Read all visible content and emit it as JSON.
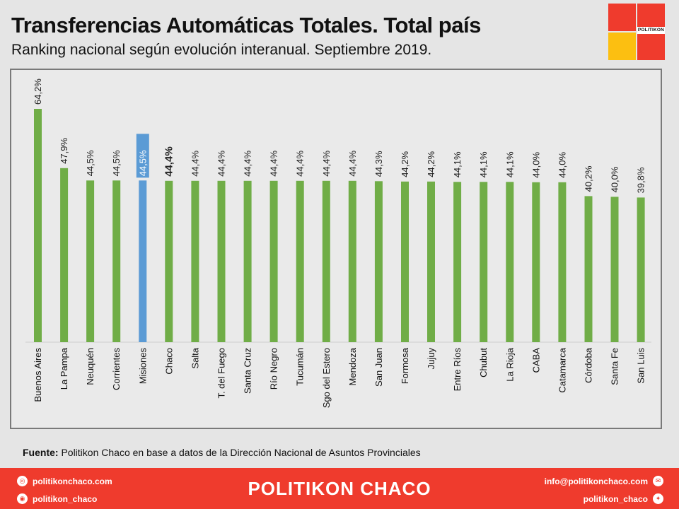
{
  "header": {
    "title": "Transferencias Automáticas Totales. Total país",
    "subtitle": "Ranking nacional según evolución interanual. Septiembre 2019.",
    "logo_text": "POLITIKON"
  },
  "colors": {
    "bar": "#70ad47",
    "highlight": "#5b9bd5",
    "accent": "#ef3b2d",
    "yellow": "#fcbf11"
  },
  "chart_data": {
    "type": "bar",
    "orientation": "vertical",
    "categories": [
      "Buenos Aires",
      "La Pampa",
      "Neuquén",
      "Corrientes",
      "Misiones",
      "Chaco",
      "Salta",
      "T. del Fuego",
      "Santa Cruz",
      "Río Negro",
      "Tucumán",
      "Sgo del Estero",
      "Mendoza",
      "San Juan",
      "Formosa",
      "Jujuy",
      "Entre Ríos",
      "Chubut",
      "La Rioja",
      "CABA",
      "Catamarca",
      "Córdoba",
      "Santa Fe",
      "San Luis"
    ],
    "values": [
      64.2,
      47.9,
      44.5,
      44.5,
      44.5,
      44.4,
      44.4,
      44.4,
      44.4,
      44.4,
      44.4,
      44.4,
      44.4,
      44.3,
      44.2,
      44.2,
      44.1,
      44.1,
      44.1,
      44.0,
      44.0,
      40.2,
      40.0,
      39.8
    ],
    "labels": [
      "64,2%",
      "47,9%",
      "44,5%",
      "44,5%",
      "44,5%",
      "44,4%",
      "44,4%",
      "44,4%",
      "44,4%",
      "44,4%",
      "44,4%",
      "44,4%",
      "44,4%",
      "44,3%",
      "44,2%",
      "44,2%",
      "44,1%",
      "44,1%",
      "44,1%",
      "44,0%",
      "44,0%",
      "40,2%",
      "40,0%",
      "39,8%"
    ],
    "highlight_category": "Misiones",
    "emphasis_category": "Chaco",
    "ylim": [
      0,
      64.2
    ],
    "grid": false,
    "legend": "none"
  },
  "source": {
    "label": "Fuente:",
    "text": " Politikon Chaco en base a datos de la Dirección Nacional de Asuntos Provinciales"
  },
  "footer": {
    "brand": "POLITIKON CHACO",
    "website": "politikonchaco.com",
    "instagram": "politikon_chaco",
    "email": "info@politikonchaco.com",
    "twitter": "politikon_chaco"
  },
  "icons": [
    "globe-icon",
    "instagram-icon",
    "mail-icon",
    "twitter-icon"
  ]
}
